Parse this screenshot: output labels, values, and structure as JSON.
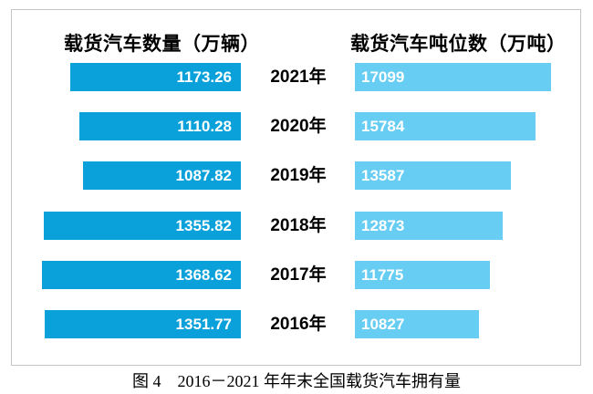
{
  "chart_data": {
    "type": "bar",
    "orientation": "horizontal-tornado",
    "left_title": "载货汽车数量（万辆）",
    "right_title": "载货汽车吨位数（万吨）",
    "categories": [
      "2021年",
      "2020年",
      "2019年",
      "2018年",
      "2017年",
      "2016年"
    ],
    "series": [
      {
        "name": "载货汽车数量（万辆）",
        "unit": "万辆",
        "bar_alignment": "right",
        "color": "#0aa1db",
        "values": [
          1173.26,
          1110.28,
          1087.82,
          1355.82,
          1368.62,
          1351.77
        ],
        "labels": [
          "1173.26",
          "1110.28",
          "1087.82",
          "1355.82",
          "1368.62",
          "1351.77"
        ]
      },
      {
        "name": "载货汽车吨位数（万吨）",
        "unit": "万吨",
        "bar_alignment": "left",
        "color": "#67cdf3",
        "values": [
          17099,
          15784,
          13587,
          12873,
          11775,
          10827
        ],
        "labels": [
          "17099",
          "15784",
          "13587",
          "12873",
          "11775",
          "10827"
        ]
      }
    ],
    "value_label_color": "#ffffff",
    "grid": false,
    "legend_position": "top-as-column-titles"
  },
  "caption": "图 4　2016－2021 年年末全国载货汽车拥有量",
  "colors": {
    "count_bar": "#0aa1db",
    "tonnage_bar": "#67cdf3",
    "frame_border": "#c4c4c4",
    "text": "#000000"
  }
}
